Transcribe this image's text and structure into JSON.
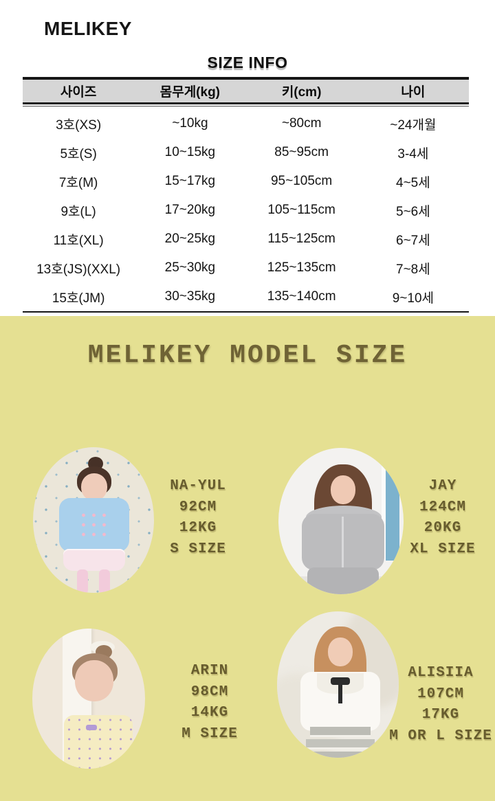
{
  "brand": {
    "logo": "MELIKEY"
  },
  "size_info": {
    "title": "SIZE INFO",
    "table": {
      "headers": [
        "사이즈",
        "몸무게(kg)",
        "키(cm)",
        "나이"
      ],
      "rows": [
        [
          "3호(XS)",
          "~10kg",
          "~80cm",
          "~24개월"
        ],
        [
          "5호(S)",
          "10~15kg",
          "85~95cm",
          "3-4세"
        ],
        [
          "7호(M)",
          "15~17kg",
          "95~105cm",
          "4~5세"
        ],
        [
          "9호(L)",
          "17~20kg",
          "105~115cm",
          "5~6세"
        ],
        [
          "11호(XL)",
          "20~25kg",
          "115~125cm",
          "6~7세"
        ],
        [
          "13호(JS)(XXL)",
          "25~30kg",
          "125~135cm",
          "7~8세"
        ],
        [
          "15호(JM)",
          "30~35kg",
          "135~140cm",
          "9~10세"
        ]
      ]
    }
  },
  "model_size": {
    "title": "MELIKEY MODEL SIZE",
    "colors": {
      "background": "#e5e092",
      "text": "#675c2e"
    },
    "models": [
      {
        "name": "NA-YUL",
        "height": "92CM",
        "weight": "12KG",
        "size": "S SIZE"
      },
      {
        "name": "JAY",
        "height": "124CM",
        "weight": "20KG",
        "size": "XL SIZE"
      },
      {
        "name": "ARIN",
        "height": "98CM",
        "weight": "14KG",
        "size": "M SIZE"
      },
      {
        "name": "ALISIIA",
        "height": "107CM",
        "weight": "17KG",
        "size": "M OR L SIZE"
      }
    ]
  }
}
